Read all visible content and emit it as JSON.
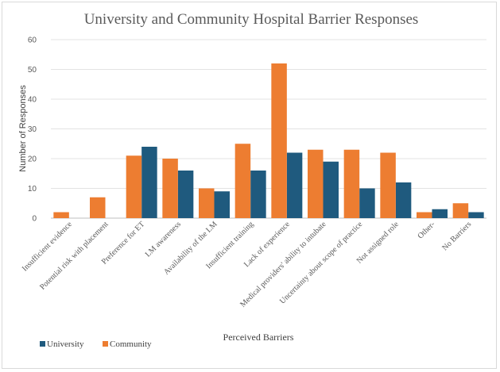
{
  "chart_data": {
    "type": "bar",
    "title": "University and Community Hospital Barrier Responses",
    "xlabel": "Perceived Barriers",
    "ylabel": "Number of Responses",
    "ylim": [
      0,
      60
    ],
    "yticks": [
      0,
      10,
      20,
      30,
      40,
      50,
      60
    ],
    "grid": true,
    "legend_position": "bottom-left",
    "categories": [
      "Insufficient evidence",
      "Potential risk with placement",
      "Preference for ET",
      "LM awareness",
      "Availability of the LM",
      "Insufficient training",
      "Lack of experience",
      "Medical providers' ability to intubate",
      "Uncertainty about scope of practice",
      "Not assigned role",
      "Other-",
      "No Barriers"
    ],
    "series": [
      {
        "name": "University",
        "color": "#1f5a7e",
        "values": [
          0,
          0,
          24,
          16,
          9,
          16,
          22,
          19,
          10,
          12,
          3,
          2
        ]
      },
      {
        "name": "Community",
        "color": "#ed7d31",
        "values": [
          2,
          7,
          21,
          20,
          10,
          25,
          52,
          23,
          23,
          22,
          2,
          5
        ]
      }
    ]
  }
}
